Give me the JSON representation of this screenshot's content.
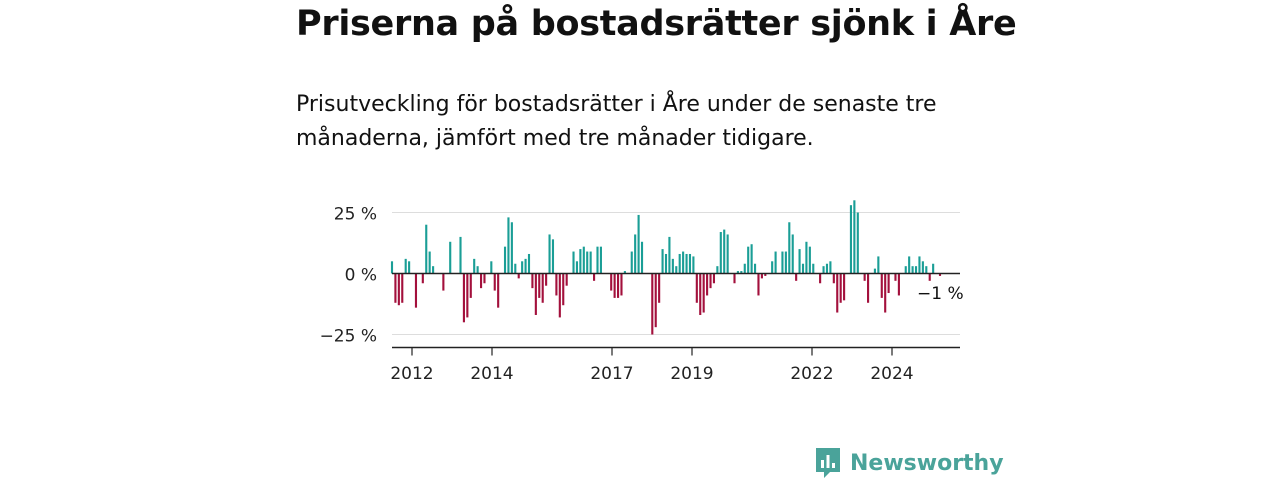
{
  "header": {
    "title": "Priserna på bostadsrätter sjönk i Åre",
    "subtitle": "Prisutveckling för bostadsrätter i Åre under de senaste tre månaderna, jämfört med tre månader tidigare."
  },
  "brand": {
    "name": "Newsworthy",
    "icon": "newsworthy-logo-icon",
    "color": "#4aa39a"
  },
  "colors": {
    "positive": "#1a9e96",
    "negative": "#a3103c",
    "grid": "#dddddd",
    "axis": "#222222"
  },
  "chart_data": {
    "type": "bar",
    "y_unit": "%",
    "ylim": [
      -30,
      30
    ],
    "y_ticks": [
      25,
      0,
      -25
    ],
    "y_tick_labels": [
      "25 %",
      "0 %",
      "−25 %"
    ],
    "xlim": [
      2011.5,
      2025.7
    ],
    "x_ticks": [
      2012,
      2014,
      2017,
      2019,
      2022,
      2024
    ],
    "x_tick_labels": [
      "2012",
      "2014",
      "2017",
      "2019",
      "2022",
      "2024"
    ],
    "grid": true,
    "last_value_label": "−1 %",
    "values": [
      5,
      -12,
      -13,
      -12,
      6,
      5,
      0,
      -14,
      0,
      -4,
      20,
      9,
      3,
      0,
      0,
      -7,
      0,
      13,
      0,
      0,
      15,
      -20,
      -18,
      -10,
      6,
      3,
      -6,
      -4,
      0,
      5,
      -7,
      -14,
      0,
      11,
      23,
      21,
      4,
      -2,
      5,
      6,
      8,
      -6,
      -17,
      -10,
      -12,
      -5,
      16,
      14,
      -9,
      -18,
      -13,
      -5,
      0,
      9,
      5,
      10,
      11,
      9,
      9,
      -3,
      11,
      11,
      0,
      0,
      -7,
      -10,
      -10,
      -9,
      1,
      0,
      9,
      16,
      24,
      13,
      0,
      0,
      -25,
      -22,
      -12,
      10,
      8,
      15,
      6,
      3,
      8,
      9,
      8,
      8,
      7,
      -12,
      -17,
      -16,
      -9,
      -6,
      -4,
      3,
      17,
      18,
      16,
      0,
      -4,
      1,
      1,
      4,
      11,
      12,
      4,
      -9,
      -2,
      -1,
      0,
      5,
      9,
      0,
      9,
      9,
      21,
      16,
      -3,
      10,
      4,
      13,
      11,
      4,
      0,
      -4,
      3,
      4,
      5,
      -4,
      -16,
      -12,
      -11,
      0,
      28,
      30,
      25,
      0,
      -3,
      -12,
      0,
      2,
      7,
      -10,
      -16,
      -8,
      0,
      -3,
      -9,
      0,
      3,
      7,
      3,
      3,
      7,
      5,
      3,
      -3,
      4,
      0,
      -1
    ]
  }
}
